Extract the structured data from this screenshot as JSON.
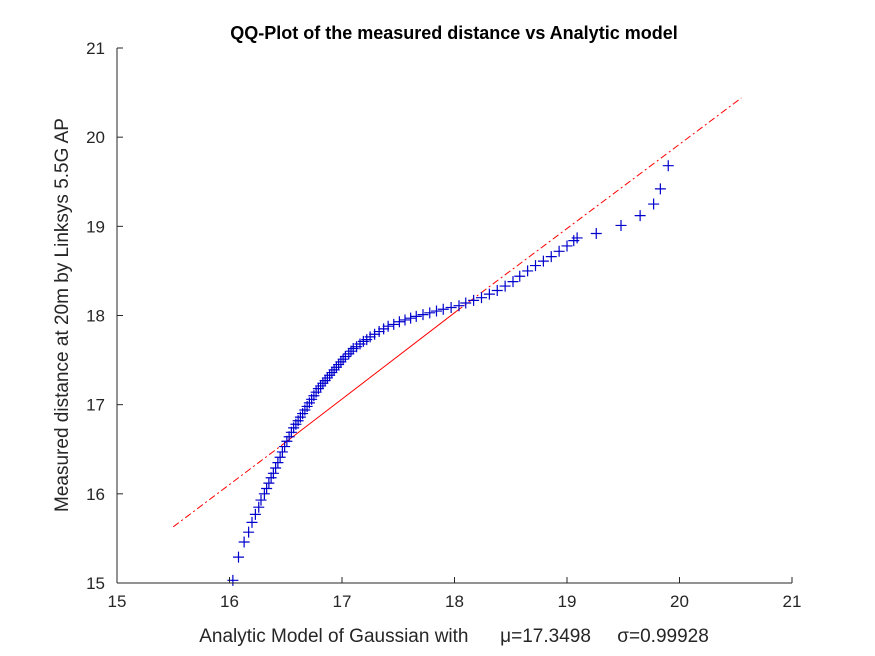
{
  "chart_data": {
    "type": "scatter",
    "title": "QQ-Plot of the measured distance vs Analytic model",
    "xlabel": "Analytic Model of Gaussian with      μ=17.3498     σ=0.99928",
    "ylabel": "Measured distance at 20m by Linksys 5.5G AP",
    "xlim": [
      15,
      21
    ],
    "ylim": [
      15,
      21
    ],
    "xticks": [
      "15",
      "16",
      "17",
      "18",
      "19",
      "20",
      "21"
    ],
    "yticks": [
      "15",
      "16",
      "17",
      "18",
      "19",
      "20",
      "21"
    ],
    "grid": false,
    "colors": {
      "points": "#0000cc",
      "reference": "#ff0000",
      "axis": "#262626"
    },
    "reference_line": {
      "solid": {
        "x": [
          16.48,
          18.02
        ],
        "y": [
          16.56,
          18.05
        ]
      },
      "dashdot_low": {
        "x": [
          15.5,
          16.48
        ],
        "y": [
          15.63,
          16.56
        ]
      },
      "dashdot_high": {
        "x": [
          18.02,
          20.55
        ],
        "y": [
          18.05,
          20.44
        ]
      }
    },
    "series": [
      {
        "marker": "+",
        "x": [
          16.03,
          16.08,
          16.13,
          16.17,
          16.2,
          16.23,
          16.26,
          16.28,
          16.31,
          16.33,
          16.35,
          16.37,
          16.39,
          16.41,
          16.43,
          16.45,
          16.47,
          16.49,
          16.51,
          16.53,
          16.55,
          16.57,
          16.59,
          16.61,
          16.63,
          16.65,
          16.67,
          16.69,
          16.71,
          16.73,
          16.75,
          16.77,
          16.79,
          16.81,
          16.83,
          16.85,
          16.87,
          16.89,
          16.91,
          16.93,
          16.95,
          16.97,
          16.99,
          17.01,
          17.03,
          17.06,
          17.08,
          17.1,
          17.13,
          17.16,
          17.19,
          17.22,
          17.25,
          17.29,
          17.33,
          17.37,
          17.41,
          17.46,
          17.51,
          17.56,
          17.61,
          17.66,
          17.72,
          17.78,
          17.84,
          17.9,
          17.97,
          18.04,
          18.1,
          18.17,
          18.24,
          18.31,
          18.38,
          18.45,
          18.52,
          18.58,
          18.65,
          18.72,
          18.79,
          18.86,
          18.93,
          19.0,
          19.06,
          19.09,
          19.26,
          19.48,
          19.65,
          19.77,
          19.83,
          19.9
        ],
        "y": [
          15.03,
          15.29,
          15.46,
          15.57,
          15.68,
          15.77,
          15.85,
          15.93,
          16.0,
          16.06,
          16.12,
          16.18,
          16.23,
          16.29,
          16.35,
          16.41,
          16.47,
          16.53,
          16.59,
          16.64,
          16.69,
          16.74,
          16.78,
          16.82,
          16.86,
          16.9,
          16.94,
          16.98,
          17.02,
          17.06,
          17.1,
          17.14,
          17.18,
          17.21,
          17.24,
          17.27,
          17.3,
          17.33,
          17.36,
          17.39,
          17.42,
          17.45,
          17.48,
          17.51,
          17.54,
          17.57,
          17.6,
          17.63,
          17.65,
          17.68,
          17.71,
          17.73,
          17.76,
          17.79,
          17.82,
          17.85,
          17.88,
          17.9,
          17.93,
          17.95,
          17.97,
          17.99,
          18.01,
          18.03,
          18.05,
          18.07,
          18.09,
          18.11,
          18.14,
          18.17,
          18.2,
          18.24,
          18.28,
          18.33,
          18.38,
          18.44,
          18.5,
          18.56,
          18.61,
          18.66,
          18.72,
          18.78,
          18.84,
          18.87,
          18.92,
          19.01,
          19.12,
          19.25,
          19.42,
          19.68
        ]
      }
    ]
  }
}
